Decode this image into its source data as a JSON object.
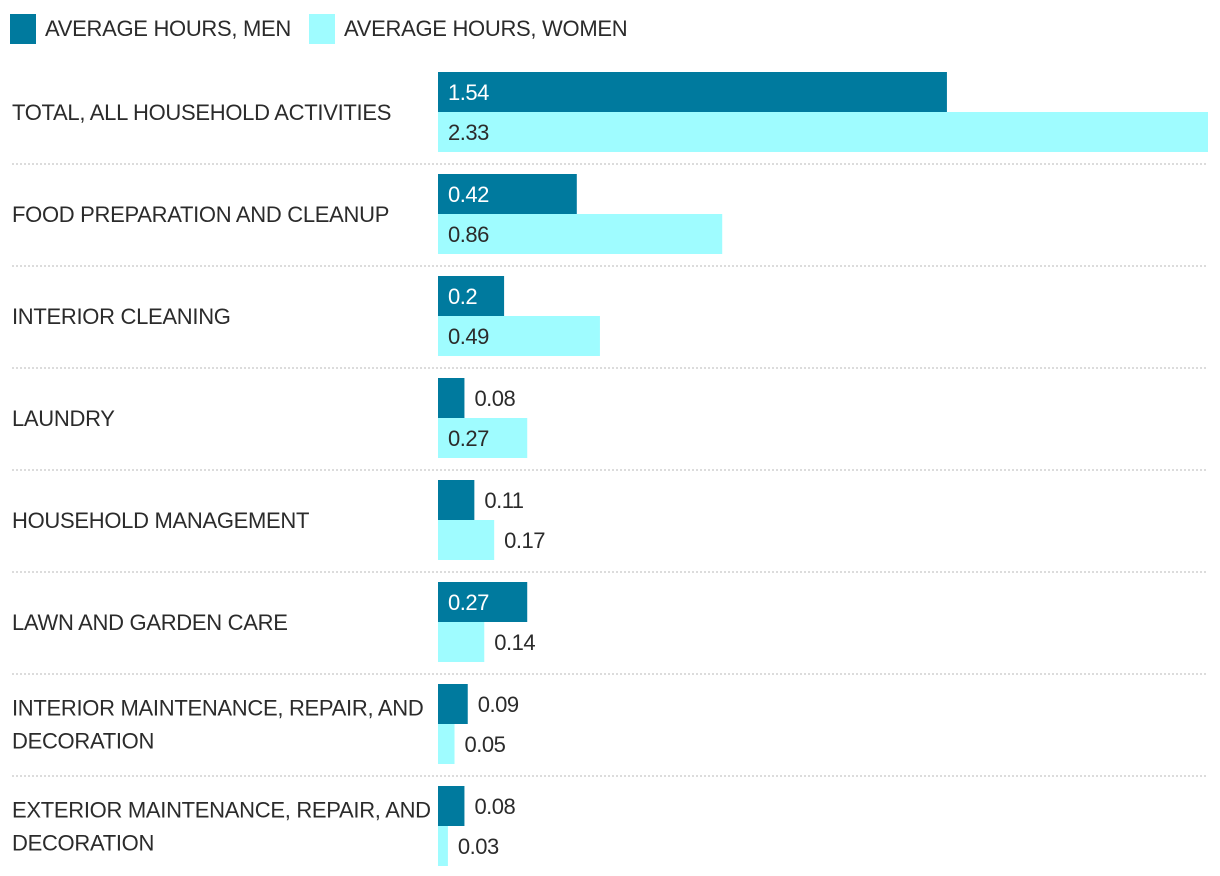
{
  "chart_data": {
    "type": "bar",
    "orientation": "horizontal",
    "legend_position": "top-left",
    "grid": false,
    "categories": [
      [
        "TOTAL, ALL HOUSEHOLD ACTIVITIES"
      ],
      [
        "FOOD PREPARATION AND CLEANUP"
      ],
      [
        "INTERIOR CLEANING"
      ],
      [
        "LAUNDRY"
      ],
      [
        "HOUSEHOLD MANAGEMENT"
      ],
      [
        "LAWN AND GARDEN CARE"
      ],
      [
        "INTERIOR MAINTENANCE, REPAIR, AND",
        "DECORATION"
      ],
      [
        "EXTERIOR MAINTENANCE, REPAIR, AND",
        "DECORATION"
      ]
    ],
    "series": [
      {
        "name": "AVERAGE HOURS, MEN",
        "color": "#007a9e",
        "values": [
          1.54,
          0.42,
          0.2,
          0.08,
          0.11,
          0.27,
          0.09,
          0.08
        ],
        "labels": [
          "1.54",
          "0.42",
          "0.2",
          "0.08",
          "0.11",
          "0.27",
          "0.09",
          "0.08"
        ]
      },
      {
        "name": "AVERAGE HOURS, WOMEN",
        "color": "#9ffcff",
        "values": [
          2.33,
          0.86,
          0.49,
          0.27,
          0.17,
          0.14,
          0.05,
          0.03
        ],
        "labels": [
          "2.33",
          "0.86",
          "0.49",
          "0.27",
          "0.17",
          "0.14",
          "0.05",
          "0.03"
        ]
      }
    ],
    "xlim": [
      0,
      2.33
    ],
    "title": "",
    "xlabel": "",
    "ylabel": ""
  }
}
